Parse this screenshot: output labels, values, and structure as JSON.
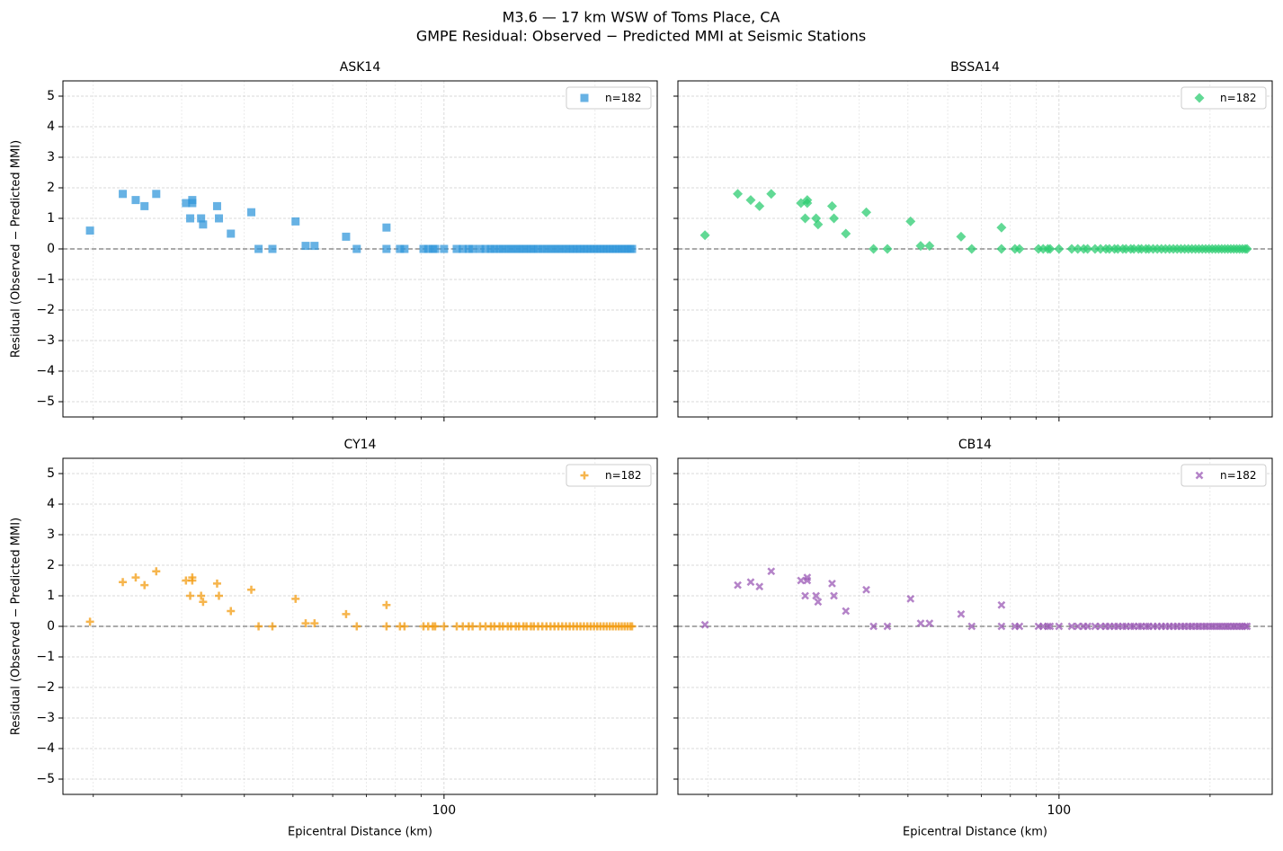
{
  "title": "M3.6 — 17 km WSW of Toms Place, CA",
  "subtitle": "GMPE Residual: Observed − Predicted MMI at Seismic Stations",
  "chart_data": [
    {
      "type": "scatter",
      "title": "ASK14",
      "ylabel": "Residual (Observed − Predicted MMI)",
      "xticklabels": false,
      "yticklabels": true,
      "x": [
        19.7,
        22.9,
        24.3,
        25.3,
        26.7,
        30.6,
        31.2,
        31.5,
        31.5,
        32.8,
        33.1,
        35.3,
        35.6,
        37.6,
        41.3,
        42.7,
        45.5,
        50.6,
        53.0,
        55.2,
        63.8,
        67.0,
        76.8,
        76.8,
        81.7,
        83.4,
        91,
        93,
        95,
        96,
        100,
        106,
        109,
        112,
        114,
        118,
        121,
        124,
        126,
        129,
        131,
        134,
        136,
        139,
        141,
        144,
        146,
        149,
        151,
        154,
        157,
        160,
        163,
        166,
        169,
        172,
        175,
        178,
        181,
        184,
        187,
        190,
        193,
        196,
        199,
        202,
        205,
        208,
        211,
        214,
        217,
        220,
        223,
        226,
        229,
        232,
        235,
        237
      ],
      "series": [
        {
          "name": "n=182",
          "color": "#3498db",
          "marker": "square",
          "values": [
            0.6,
            1.8,
            1.6,
            1.4,
            1.8,
            1.5,
            1.0,
            1.6,
            1.5,
            1.0,
            0.8,
            1.4,
            1.0,
            0.5,
            1.2,
            0,
            0,
            0.9,
            0.1,
            0.1,
            0.4,
            0,
            0.7,
            0,
            0,
            0,
            0,
            0,
            0,
            0,
            0,
            0,
            0,
            0,
            0,
            0,
            0,
            0,
            0,
            0,
            0,
            0,
            0,
            0,
            0,
            0,
            0,
            0,
            0,
            0,
            0,
            0,
            0,
            0,
            0,
            0,
            0,
            0,
            0,
            0,
            0,
            0,
            0,
            0,
            0,
            0,
            0,
            0,
            0,
            0,
            0,
            0,
            0,
            0,
            0,
            0,
            0,
            0
          ]
        }
      ],
      "xlim": [
        17.4,
        266
      ],
      "ylim": [
        -5.5,
        5.5
      ],
      "log_x": true,
      "xticks": [
        100
      ],
      "xminor": [
        20,
        30,
        40,
        50,
        60,
        70,
        80,
        90,
        200
      ],
      "yticks": [
        {
          "value": -5,
          "label": "−5"
        },
        {
          "value": -4,
          "label": "−4"
        },
        {
          "value": -3,
          "label": "−3"
        },
        {
          "value": -2,
          "label": "−2"
        },
        {
          "value": -1,
          "label": "−1"
        },
        0,
        1,
        2,
        3,
        4,
        5
      ],
      "hline": 0,
      "grid": true,
      "legend": "upper right"
    },
    {
      "type": "scatter",
      "title": "BSSA14",
      "xticklabels": false,
      "yticklabels": false,
      "x": [
        19.7,
        22.9,
        24.3,
        25.3,
        26.7,
        30.6,
        31.2,
        31.5,
        31.5,
        32.8,
        33.1,
        35.3,
        35.6,
        37.6,
        41.3,
        42.7,
        45.5,
        50.6,
        53.0,
        55.2,
        63.8,
        67.0,
        76.8,
        76.8,
        81.7,
        83.4,
        91,
        93,
        95,
        96,
        100,
        106,
        109,
        112,
        114,
        118,
        121,
        124,
        126,
        129,
        131,
        134,
        136,
        139,
        141,
        144,
        146,
        149,
        151,
        154,
        157,
        160,
        163,
        166,
        169,
        172,
        175,
        178,
        181,
        184,
        187,
        190,
        193,
        196,
        199,
        202,
        205,
        208,
        211,
        214,
        217,
        220,
        223,
        226,
        229,
        232,
        235,
        237
      ],
      "series": [
        {
          "name": "n=182",
          "color": "#2ecc71",
          "marker": "diamond",
          "values": [
            0.45,
            1.8,
            1.6,
            1.4,
            1.8,
            1.5,
            1.0,
            1.6,
            1.5,
            1.0,
            0.8,
            1.4,
            1.0,
            0.5,
            1.2,
            0,
            0,
            0.9,
            0.1,
            0.1,
            0.4,
            0,
            0.7,
            0,
            0,
            0,
            0,
            0,
            0,
            0,
            0,
            0,
            0,
            0,
            0,
            0,
            0,
            0,
            0,
            0,
            0,
            0,
            0,
            0,
            0,
            0,
            0,
            0,
            0,
            0,
            0,
            0,
            0,
            0,
            0,
            0,
            0,
            0,
            0,
            0,
            0,
            0,
            0,
            0,
            0,
            0,
            0,
            0,
            0,
            0,
            0,
            0,
            0,
            0,
            0,
            0,
            0,
            0
          ]
        }
      ],
      "xlim": [
        17.4,
        266
      ],
      "ylim": [
        -5.5,
        5.5
      ],
      "log_x": true,
      "xticks": [
        100
      ],
      "xminor": [
        20,
        30,
        40,
        50,
        60,
        70,
        80,
        90,
        200
      ],
      "yticks": [
        -5,
        -4,
        -3,
        -2,
        -1,
        0,
        1,
        2,
        3,
        4,
        5
      ],
      "hline": 0,
      "grid": true,
      "legend": "upper right"
    },
    {
      "type": "scatter",
      "title": "CY14",
      "xlabel": "Epicentral Distance (km)",
      "ylabel": "Residual (Observed − Predicted MMI)",
      "xticklabels": true,
      "yticklabels": true,
      "x": [
        19.7,
        22.9,
        24.3,
        25.3,
        26.7,
        30.6,
        31.2,
        31.5,
        31.5,
        32.8,
        33.1,
        35.3,
        35.6,
        37.6,
        41.3,
        42.7,
        45.5,
        50.6,
        53.0,
        55.2,
        63.8,
        67.0,
        76.8,
        76.8,
        81.7,
        83.4,
        91,
        93,
        95,
        96,
        100,
        106,
        109,
        112,
        114,
        118,
        121,
        124,
        126,
        129,
        131,
        134,
        136,
        139,
        141,
        144,
        146,
        149,
        151,
        154,
        157,
        160,
        163,
        166,
        169,
        172,
        175,
        178,
        181,
        184,
        187,
        190,
        193,
        196,
        199,
        202,
        205,
        208,
        211,
        214,
        217,
        220,
        223,
        226,
        229,
        232,
        235,
        237
      ],
      "series": [
        {
          "name": "n=182",
          "color": "#f39c12",
          "marker": "plus",
          "values": [
            0.15,
            1.45,
            1.6,
            1.35,
            1.8,
            1.5,
            1.0,
            1.6,
            1.5,
            1.0,
            0.8,
            1.4,
            1.0,
            0.5,
            1.2,
            0,
            0,
            0.9,
            0.1,
            0.1,
            0.4,
            0,
            0.7,
            0,
            0,
            0,
            0,
            0,
            0,
            0,
            0,
            0,
            0,
            0,
            0,
            0,
            0,
            0,
            0,
            0,
            0,
            0,
            0,
            0,
            0,
            0,
            0,
            0,
            0,
            0,
            0,
            0,
            0,
            0,
            0,
            0,
            0,
            0,
            0,
            0,
            0,
            0,
            0,
            0,
            0,
            0,
            0,
            0,
            0,
            0,
            0,
            0,
            0,
            0,
            0,
            0,
            0,
            0
          ]
        }
      ],
      "xlim": [
        17.4,
        266
      ],
      "ylim": [
        -5.5,
        5.5
      ],
      "log_x": true,
      "xticks": [
        100
      ],
      "xminor": [
        20,
        30,
        40,
        50,
        60,
        70,
        80,
        90,
        200
      ],
      "yticks": [
        {
          "value": -5,
          "label": "−5"
        },
        {
          "value": -4,
          "label": "−4"
        },
        {
          "value": -3,
          "label": "−3"
        },
        {
          "value": -2,
          "label": "−2"
        },
        {
          "value": -1,
          "label": "−1"
        },
        0,
        1,
        2,
        3,
        4,
        5
      ],
      "hline": 0,
      "grid": true,
      "legend": "upper right"
    },
    {
      "type": "scatter",
      "title": "CB14",
      "xlabel": "Epicentral Distance (km)",
      "xticklabels": true,
      "yticklabels": false,
      "x": [
        19.7,
        22.9,
        24.3,
        25.3,
        26.7,
        30.6,
        31.2,
        31.5,
        31.5,
        32.8,
        33.1,
        35.3,
        35.6,
        37.6,
        41.3,
        42.7,
        45.5,
        50.6,
        53.0,
        55.2,
        63.8,
        67.0,
        76.8,
        76.8,
        81.7,
        83.4,
        91,
        93,
        95,
        96,
        100,
        106,
        109,
        112,
        114,
        118,
        121,
        124,
        126,
        129,
        131,
        134,
        136,
        139,
        141,
        144,
        146,
        149,
        151,
        154,
        157,
        160,
        163,
        166,
        169,
        172,
        175,
        178,
        181,
        184,
        187,
        190,
        193,
        196,
        199,
        202,
        205,
        208,
        211,
        214,
        217,
        220,
        223,
        226,
        229,
        232,
        235,
        237
      ],
      "series": [
        {
          "name": "n=182",
          "color": "#9b59b6",
          "marker": "x",
          "values": [
            0.05,
            1.35,
            1.45,
            1.3,
            1.8,
            1.5,
            1.0,
            1.6,
            1.5,
            1.0,
            0.8,
            1.4,
            1.0,
            0.5,
            1.2,
            0,
            0,
            0.9,
            0.1,
            0.1,
            0.4,
            0,
            0.7,
            0,
            0,
            0,
            0,
            0,
            0,
            0,
            0,
            0,
            0,
            0,
            0,
            0,
            0,
            0,
            0,
            0,
            0,
            0,
            0,
            0,
            0,
            0,
            0,
            0,
            0,
            0,
            0,
            0,
            0,
            0,
            0,
            0,
            0,
            0,
            0,
            0,
            0,
            0,
            0,
            0,
            0,
            0,
            0,
            0,
            0,
            0,
            0,
            0,
            0,
            0,
            0,
            0,
            0,
            0
          ]
        }
      ],
      "xlim": [
        17.4,
        266
      ],
      "ylim": [
        -5.5,
        5.5
      ],
      "log_x": true,
      "xticks": [
        100
      ],
      "xminor": [
        20,
        30,
        40,
        50,
        60,
        70,
        80,
        90,
        200
      ],
      "yticks": [
        -5,
        -4,
        -3,
        -2,
        -1,
        0,
        1,
        2,
        3,
        4,
        5
      ],
      "hline": 0,
      "grid": true,
      "legend": "upper right"
    }
  ]
}
